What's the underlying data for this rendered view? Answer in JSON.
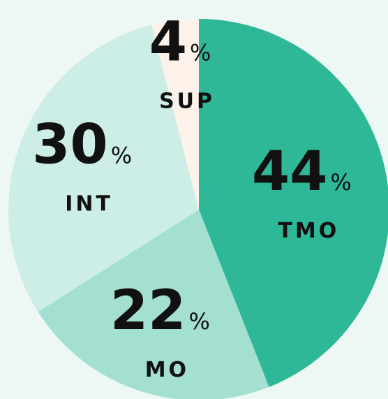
{
  "chart_data": {
    "type": "pie",
    "unit": "%",
    "categories": [
      "TMO",
      "MO",
      "INT",
      "SUP"
    ],
    "values": [
      44,
      22,
      30,
      4
    ],
    "colors": [
      "#2fb898",
      "#a3e0d2",
      "#cdeee6",
      "#fdf2ea"
    ]
  }
}
